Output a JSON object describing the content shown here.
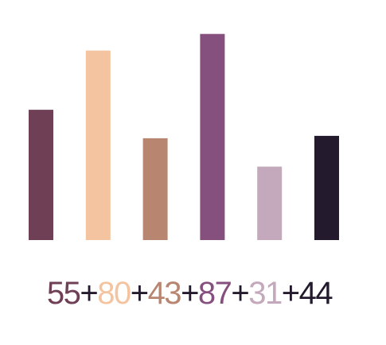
{
  "chart_data": {
    "type": "bar",
    "values": [
      55,
      80,
      43,
      87,
      31,
      44
    ],
    "colors": [
      "#6e3f55",
      "#f4c4a0",
      "#b88670",
      "#86507e",
      "#c4a8bc",
      "#231a2e"
    ],
    "ylim": [
      0,
      100
    ],
    "grid": false,
    "legend": "none",
    "equation": {
      "terms": [
        {
          "text": "55",
          "color": "#6e3f55"
        },
        {
          "text": "+",
          "color": "#231a2e"
        },
        {
          "text": "80",
          "color": "#f4c4a0"
        },
        {
          "text": "+",
          "color": "#231a2e"
        },
        {
          "text": "43",
          "color": "#b88670"
        },
        {
          "text": "+",
          "color": "#231a2e"
        },
        {
          "text": "87",
          "color": "#86507e"
        },
        {
          "text": "+",
          "color": "#231a2e"
        },
        {
          "text": "31",
          "color": "#c4a8bc"
        },
        {
          "text": "+",
          "color": "#231a2e"
        },
        {
          "text": "44",
          "color": "#231a2e"
        }
      ]
    }
  }
}
